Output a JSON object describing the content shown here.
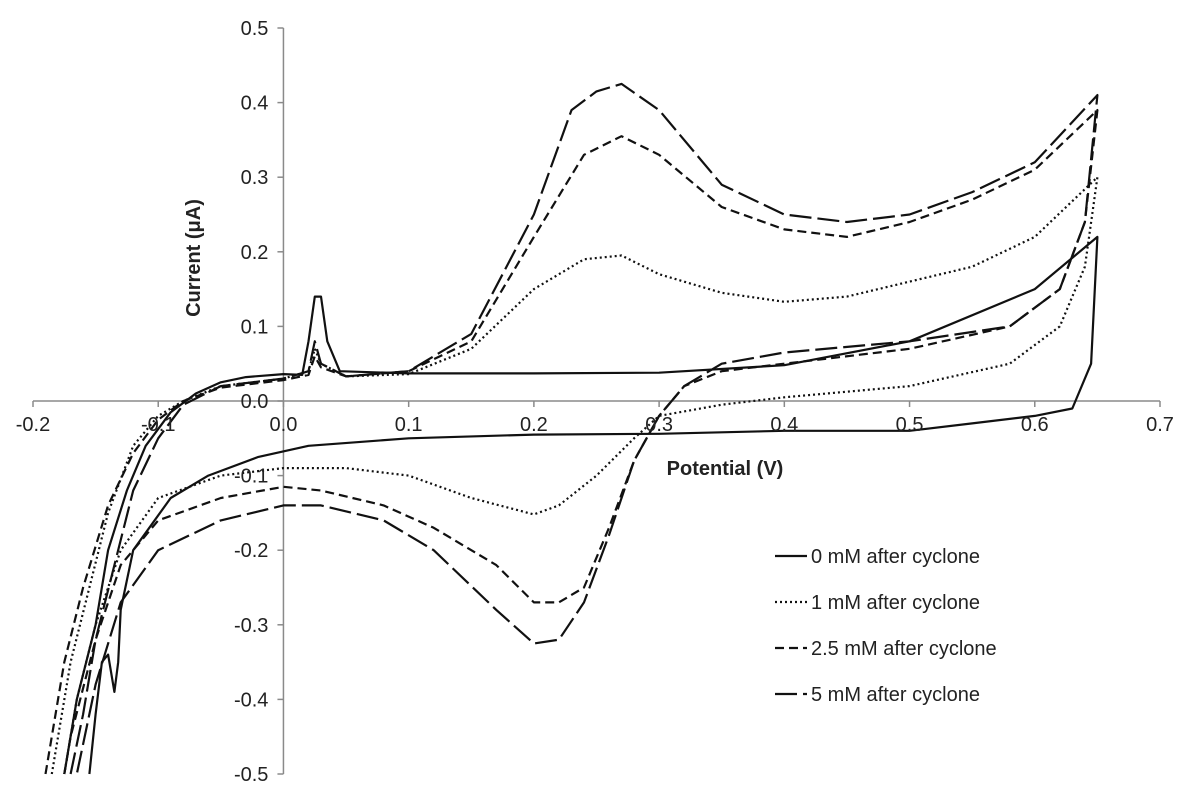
{
  "chart_data": {
    "type": "line",
    "title": "",
    "xlabel": "Potential (V)",
    "ylabel": "Current (μA)",
    "xlim": [
      -0.2,
      0.7
    ],
    "ylim": [
      -0.5,
      0.5
    ],
    "x_ticks": [
      -0.2,
      -0.1,
      0.0,
      0.1,
      0.2,
      0.3,
      0.4,
      0.5,
      0.6,
      0.7
    ],
    "y_ticks": [
      0.5,
      0.4,
      0.3,
      0.2,
      0.1,
      0.0,
      -0.1,
      -0.2,
      -0.3,
      -0.4,
      -0.5
    ],
    "x_tick_labels": [
      "-0.2",
      "-0.1",
      "0.0",
      "0.1",
      "0.2",
      "0.3",
      "0.4",
      "0.5",
      "0.6",
      "0.7"
    ],
    "y_tick_labels": [
      "0.5",
      "0.4",
      "0.3",
      "0.2",
      "0.1",
      "0.0",
      "-0.1",
      "-0.2",
      "-0.3",
      "-0.4",
      "-0.5"
    ],
    "grid": false,
    "legend_position": "bottom-right",
    "series": [
      {
        "name": "0 mM after cyclone",
        "line_style": "solid",
        "points": [
          [
            -0.175,
            -0.5
          ],
          [
            -0.165,
            -0.4
          ],
          [
            -0.15,
            -0.3
          ],
          [
            -0.14,
            -0.2
          ],
          [
            -0.125,
            -0.12
          ],
          [
            -0.11,
            -0.06
          ],
          [
            -0.09,
            -0.015
          ],
          [
            -0.07,
            0.01
          ],
          [
            -0.05,
            0.025
          ],
          [
            -0.03,
            0.032
          ],
          [
            0.0,
            0.036
          ],
          [
            0.015,
            0.035
          ],
          [
            0.02,
            0.08
          ],
          [
            0.025,
            0.14
          ],
          [
            0.03,
            0.14
          ],
          [
            0.035,
            0.08
          ],
          [
            0.045,
            0.04
          ],
          [
            0.1,
            0.037
          ],
          [
            0.2,
            0.037
          ],
          [
            0.3,
            0.038
          ],
          [
            0.4,
            0.048
          ],
          [
            0.5,
            0.08
          ],
          [
            0.6,
            0.15
          ],
          [
            0.65,
            0.22
          ],
          [
            0.645,
            0.05
          ],
          [
            0.63,
            -0.01
          ],
          [
            0.6,
            -0.02
          ],
          [
            0.55,
            -0.03
          ],
          [
            0.5,
            -0.04
          ],
          [
            0.4,
            -0.04
          ],
          [
            0.3,
            -0.044
          ],
          [
            0.2,
            -0.045
          ],
          [
            0.1,
            -0.05
          ],
          [
            0.02,
            -0.06
          ],
          [
            -0.02,
            -0.075
          ],
          [
            -0.06,
            -0.1
          ],
          [
            -0.09,
            -0.13
          ],
          [
            -0.12,
            -0.2
          ],
          [
            -0.13,
            -0.28
          ],
          [
            -0.132,
            -0.35
          ],
          [
            -0.135,
            -0.39
          ],
          [
            -0.14,
            -0.34
          ],
          [
            -0.145,
            -0.35
          ],
          [
            -0.15,
            -0.42
          ],
          [
            -0.155,
            -0.5
          ]
        ]
      },
      {
        "name": "1 mM after cyclone",
        "line_style": "dotted",
        "points": [
          [
            -0.185,
            -0.5
          ],
          [
            -0.17,
            -0.35
          ],
          [
            -0.155,
            -0.25
          ],
          [
            -0.14,
            -0.15
          ],
          [
            -0.12,
            -0.06
          ],
          [
            -0.1,
            -0.02
          ],
          [
            -0.08,
            0.0
          ],
          [
            -0.05,
            0.02
          ],
          [
            0.0,
            0.03
          ],
          [
            0.02,
            0.04
          ],
          [
            0.025,
            0.07
          ],
          [
            0.03,
            0.05
          ],
          [
            0.05,
            0.033
          ],
          [
            0.1,
            0.036
          ],
          [
            0.15,
            0.07
          ],
          [
            0.2,
            0.15
          ],
          [
            0.24,
            0.19
          ],
          [
            0.27,
            0.195
          ],
          [
            0.3,
            0.17
          ],
          [
            0.35,
            0.145
          ],
          [
            0.4,
            0.133
          ],
          [
            0.45,
            0.14
          ],
          [
            0.5,
            0.16
          ],
          [
            0.55,
            0.18
          ],
          [
            0.6,
            0.22
          ],
          [
            0.65,
            0.3
          ],
          [
            0.64,
            0.18
          ],
          [
            0.62,
            0.1
          ],
          [
            0.58,
            0.05
          ],
          [
            0.5,
            0.02
          ],
          [
            0.4,
            0.005
          ],
          [
            0.35,
            -0.005
          ],
          [
            0.3,
            -0.02
          ],
          [
            0.28,
            -0.05
          ],
          [
            0.25,
            -0.1
          ],
          [
            0.22,
            -0.14
          ],
          [
            0.2,
            -0.152
          ],
          [
            0.15,
            -0.13
          ],
          [
            0.1,
            -0.1
          ],
          [
            0.05,
            -0.09
          ],
          [
            0.0,
            -0.09
          ],
          [
            -0.05,
            -0.1
          ],
          [
            -0.1,
            -0.13
          ],
          [
            -0.13,
            -0.2
          ],
          [
            -0.15,
            -0.3
          ],
          [
            -0.165,
            -0.4
          ],
          [
            -0.175,
            -0.5
          ]
        ]
      },
      {
        "name": "2.5 mM after cyclone",
        "line_style": "dashed",
        "points": [
          [
            -0.19,
            -0.5
          ],
          [
            -0.175,
            -0.35
          ],
          [
            -0.16,
            -0.25
          ],
          [
            -0.14,
            -0.14
          ],
          [
            -0.12,
            -0.07
          ],
          [
            -0.1,
            -0.025
          ],
          [
            -0.08,
            0.0
          ],
          [
            -0.05,
            0.018
          ],
          [
            0.0,
            0.028
          ],
          [
            0.02,
            0.035
          ],
          [
            0.025,
            0.06
          ],
          [
            0.03,
            0.045
          ],
          [
            0.05,
            0.033
          ],
          [
            0.1,
            0.04
          ],
          [
            0.15,
            0.08
          ],
          [
            0.2,
            0.22
          ],
          [
            0.24,
            0.33
          ],
          [
            0.27,
            0.355
          ],
          [
            0.3,
            0.33
          ],
          [
            0.35,
            0.26
          ],
          [
            0.4,
            0.23
          ],
          [
            0.45,
            0.22
          ],
          [
            0.5,
            0.24
          ],
          [
            0.55,
            0.27
          ],
          [
            0.6,
            0.31
          ],
          [
            0.65,
            0.39
          ],
          [
            0.64,
            0.24
          ],
          [
            0.62,
            0.15
          ],
          [
            0.58,
            0.1
          ],
          [
            0.5,
            0.07
          ],
          [
            0.4,
            0.05
          ],
          [
            0.35,
            0.04
          ],
          [
            0.32,
            0.02
          ],
          [
            0.3,
            -0.02
          ],
          [
            0.28,
            -0.08
          ],
          [
            0.26,
            -0.17
          ],
          [
            0.24,
            -0.25
          ],
          [
            0.22,
            -0.27
          ],
          [
            0.2,
            -0.27
          ],
          [
            0.17,
            -0.22
          ],
          [
            0.12,
            -0.17
          ],
          [
            0.08,
            -0.14
          ],
          [
            0.03,
            -0.12
          ],
          [
            0.0,
            -0.115
          ],
          [
            -0.05,
            -0.13
          ],
          [
            -0.1,
            -0.16
          ],
          [
            -0.13,
            -0.22
          ],
          [
            -0.15,
            -0.32
          ],
          [
            -0.17,
            -0.45
          ],
          [
            -0.175,
            -0.5
          ]
        ]
      },
      {
        "name": "5 mM after cyclone",
        "line_style": "long-dash",
        "points": [
          [
            -0.17,
            -0.5
          ],
          [
            -0.16,
            -0.42
          ],
          [
            -0.15,
            -0.32
          ],
          [
            -0.135,
            -0.22
          ],
          [
            -0.12,
            -0.12
          ],
          [
            -0.1,
            -0.05
          ],
          [
            -0.08,
            -0.005
          ],
          [
            -0.05,
            0.02
          ],
          [
            0.0,
            0.03
          ],
          [
            0.02,
            0.04
          ],
          [
            0.025,
            0.08
          ],
          [
            0.03,
            0.05
          ],
          [
            0.05,
            0.033
          ],
          [
            0.1,
            0.04
          ],
          [
            0.15,
            0.09
          ],
          [
            0.2,
            0.25
          ],
          [
            0.23,
            0.39
          ],
          [
            0.25,
            0.415
          ],
          [
            0.27,
            0.425
          ],
          [
            0.3,
            0.39
          ],
          [
            0.35,
            0.29
          ],
          [
            0.4,
            0.25
          ],
          [
            0.45,
            0.24
          ],
          [
            0.5,
            0.25
          ],
          [
            0.55,
            0.28
          ],
          [
            0.6,
            0.32
          ],
          [
            0.65,
            0.41
          ],
          [
            0.64,
            0.24
          ],
          [
            0.62,
            0.15
          ],
          [
            0.58,
            0.1
          ],
          [
            0.5,
            0.08
          ],
          [
            0.4,
            0.065
          ],
          [
            0.35,
            0.05
          ],
          [
            0.32,
            0.02
          ],
          [
            0.3,
            -0.02
          ],
          [
            0.28,
            -0.08
          ],
          [
            0.26,
            -0.18
          ],
          [
            0.24,
            -0.27
          ],
          [
            0.22,
            -0.32
          ],
          [
            0.2,
            -0.325
          ],
          [
            0.17,
            -0.28
          ],
          [
            0.12,
            -0.2
          ],
          [
            0.08,
            -0.16
          ],
          [
            0.03,
            -0.14
          ],
          [
            0.0,
            -0.14
          ],
          [
            -0.05,
            -0.16
          ],
          [
            -0.1,
            -0.2
          ],
          [
            -0.13,
            -0.27
          ],
          [
            -0.15,
            -0.38
          ],
          [
            -0.16,
            -0.46
          ],
          [
            -0.165,
            -0.5
          ]
        ]
      }
    ]
  },
  "legend": {
    "items": [
      "0 mM after cyclone",
      "1 mM after cyclone",
      "2.5 mM after cyclone",
      "5 mM after cyclone"
    ]
  }
}
